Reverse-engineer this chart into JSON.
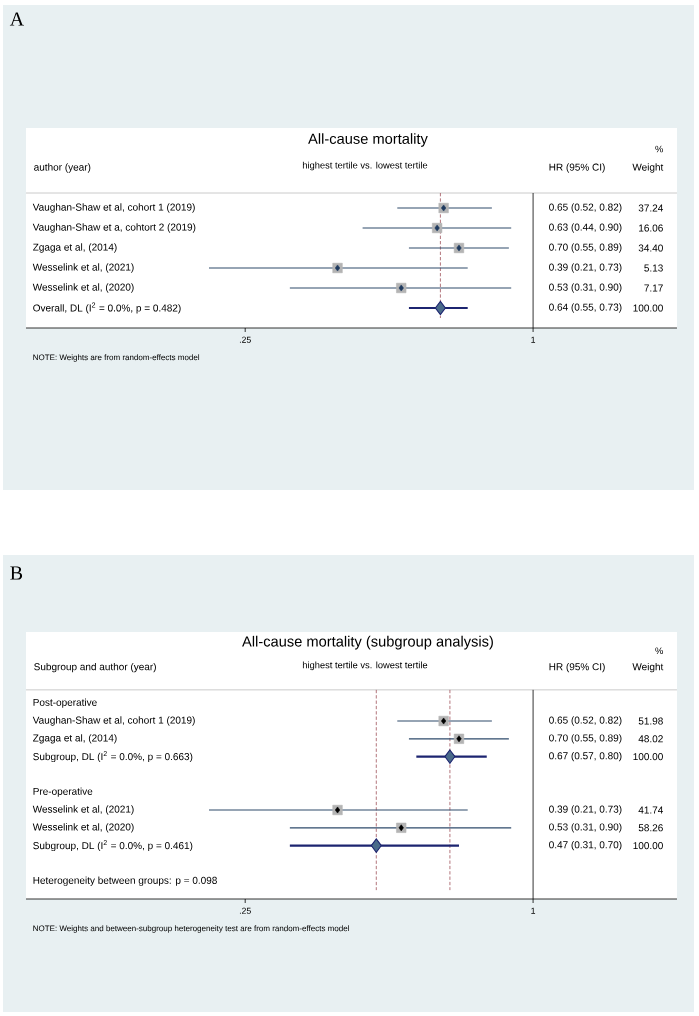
{
  "chart_data": [
    {
      "type": "scatter",
      "orientation": "horizontal",
      "log": "x",
      "title": "All-cause mortality",
      "subtitle": "highest tertile vs. lowest tertile",
      "ylabel": "author (year)",
      "categories": [
        "Vaughan-Shaw et al, cohort 1 (2019)",
        "Vaughan-Shaw et a, cohtort 2 (2019)",
        "Zgaga et al, (2014)",
        "Wesselink et al, (2021)",
        "Wesselink et al, (2020)",
        "Overall, DL (I$^{2}$ = 0.0%, p = 0.482)"
      ],
      "xlim": [
        0.087,
        2
      ],
      "xticks": [
        {
          "value": 0.25,
          "label": ".25"
        },
        1
      ],
      "series": [
        {
          "color": "#1f3a5f",
          "marker": "diamond",
          "values": [
            0.65,
            0.63,
            0.7,
            0.39,
            0.53,
            null
          ],
          "errors": [
            [
              0.52,
              0.82
            ],
            [
              0.44,
              0.9
            ],
            [
              0.55,
              0.89
            ],
            [
              0.21,
              0.73
            ],
            [
              0.31,
              0.9
            ],
            null
          ]
        },
        {
          "color": "#4a6b8a",
          "marker": "diamond",
          "values": [
            null,
            null,
            null,
            null,
            null,
            0.64
          ],
          "errors": [
            null,
            null,
            null,
            null,
            null,
            [
              0.55,
              0.73
            ]
          ]
        }
      ],
      "ref_lines": [
        {
          "axis": "x",
          "value": 1,
          "color": "#000000",
          "line_style": "solid"
        },
        {
          "axis": "x",
          "value": 0.64,
          "color": "#a0525a",
          "line_style": "dashed"
        }
      ],
      "annotations": [
        "A",
        "%",
        "HR (95% CI)",
        "Weight",
        "NOTE: Weights are from random-effects model",
        "0.65 (0.52, 0.82)",
        "37.24",
        "0.63 (0.44, 0.90)",
        "16.06",
        "0.70 (0.55, 0.89)",
        "34.40",
        "0.39 (0.21, 0.73)",
        "5.13",
        "0.53 (0.31, 0.90)",
        "7.17",
        "0.64 (0.55, 0.73)",
        "100.00"
      ]
    },
    {
      "type": "scatter",
      "orientation": "horizontal",
      "log": "x",
      "title": "All-cause mortality (subgroup analysis)",
      "subtitle": "highest tertile vs. lowest tertile",
      "ylabel": "Subgroup and author (year)",
      "categories": [
        "Post-operative",
        "Vaughan-Shaw et al, cohort 1 (2019)",
        "Zgaga et al, (2014)",
        "Subgroup, DL (I$^{2}$ = 0.0%, p = 0.663)",
        null,
        "Pre-operative",
        "Wesselink et al, (2021)",
        "Wesselink et al, (2020)",
        "Subgroup, DL (I$^{2}$ = 0.0%, p = 0.461)",
        null,
        "Heterogeneity between groups: p = 0.098"
      ],
      "xlim": [
        0.087,
        2
      ],
      "xticks": [
        {
          "value": 0.25,
          "label": ".25"
        },
        1
      ],
      "series": [
        {
          "color": "#000000",
          "marker": "diamond",
          "values": [
            null,
            0.65,
            0.7,
            null,
            null,
            null,
            0.39,
            0.53,
            null,
            null,
            null
          ],
          "errors": [
            null,
            [
              0.52,
              0.82
            ],
            [
              0.55,
              0.89
            ],
            null,
            null,
            null,
            [
              0.21,
              0.73
            ],
            [
              0.31,
              0.9
            ],
            null,
            null,
            null
          ]
        },
        {
          "color": "#4a6b8a",
          "marker": "diamond",
          "values": [
            null,
            null,
            null,
            0.67,
            null,
            null,
            null,
            null,
            0.47,
            null,
            null
          ],
          "errors": [
            null,
            null,
            null,
            [
              0.57,
              0.8
            ],
            null,
            null,
            null,
            null,
            [
              0.31,
              0.7
            ],
            null,
            null
          ]
        }
      ],
      "ref_lines": [
        {
          "axis": "x",
          "value": 1,
          "color": "#000000",
          "line_style": "solid"
        },
        {
          "axis": "x",
          "value": 0.67,
          "color": "#a0525a",
          "line_style": "dashed"
        },
        {
          "axis": "x",
          "value": 0.47,
          "color": "#a0525a",
          "line_style": "dashed"
        }
      ],
      "annotations": [
        "B",
        "%",
        "HR (95% CI)",
        "Weight",
        "NOTE: Weights and between-subgroup heterogeneity test are from random-effects model",
        "0.65 (0.52, 0.82)",
        "51.98",
        "0.70 (0.55, 0.89)",
        "48.02",
        "0.67 (0.57, 0.80)",
        "100.00",
        "0.39 (0.21, 0.73)",
        "41.74",
        "0.53 (0.31, 0.90)",
        "58.26",
        "0.47 (0.31, 0.70)",
        "100.00"
      ]
    }
  ]
}
